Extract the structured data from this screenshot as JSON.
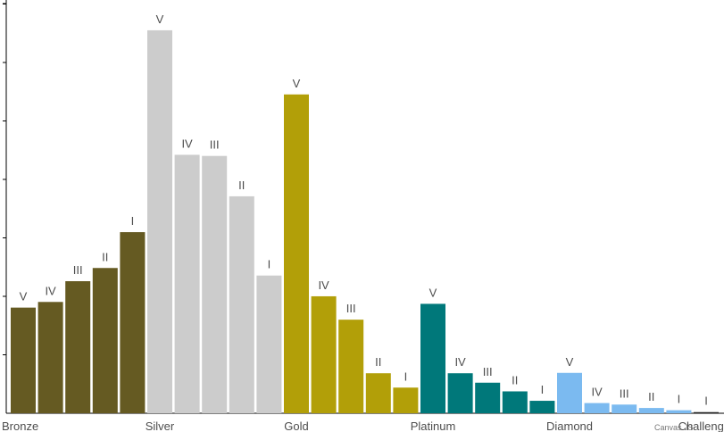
{
  "chart_data": {
    "type": "bar",
    "title": "",
    "xlabel": "",
    "ylabel": "",
    "ylim": [
      0,
      100
    ],
    "grid": false,
    "tiers": [
      {
        "name": "Bronze",
        "color": "#655a22",
        "divisions": [
          "V",
          "IV",
          "III",
          "II",
          "I"
        ],
        "values": [
          28,
          29.5,
          35,
          38.5,
          48
        ]
      },
      {
        "name": "Silver",
        "color": "#cccccc",
        "divisions": [
          "V",
          "IV",
          "III",
          "II",
          "I"
        ],
        "values": [
          101.5,
          68.5,
          68.2,
          57.5,
          36.5
        ]
      },
      {
        "name": "Gold",
        "color": "#b29f08",
        "divisions": [
          "V",
          "IV",
          "III",
          "II",
          "I"
        ],
        "values": [
          84.5,
          31,
          24.8,
          10.6,
          6.8
        ]
      },
      {
        "name": "Platinum",
        "color": "#00787a",
        "divisions": [
          "V",
          "IV",
          "III",
          "II",
          "I"
        ],
        "values": [
          29,
          10.6,
          8.1,
          5.8,
          3.3
        ]
      },
      {
        "name": "Diamond",
        "color": "#7bbaf0",
        "divisions": [
          "V",
          "IV",
          "III",
          "II",
          "I"
        ],
        "values": [
          10.7,
          2.7,
          2.3,
          1.4,
          0.8
        ]
      },
      {
        "name": "Challenger",
        "color": "#222222",
        "divisions": [
          "I"
        ],
        "values": [
          0.3
        ]
      }
    ]
  },
  "footer": {
    "watermark": "Canvas JS"
  }
}
